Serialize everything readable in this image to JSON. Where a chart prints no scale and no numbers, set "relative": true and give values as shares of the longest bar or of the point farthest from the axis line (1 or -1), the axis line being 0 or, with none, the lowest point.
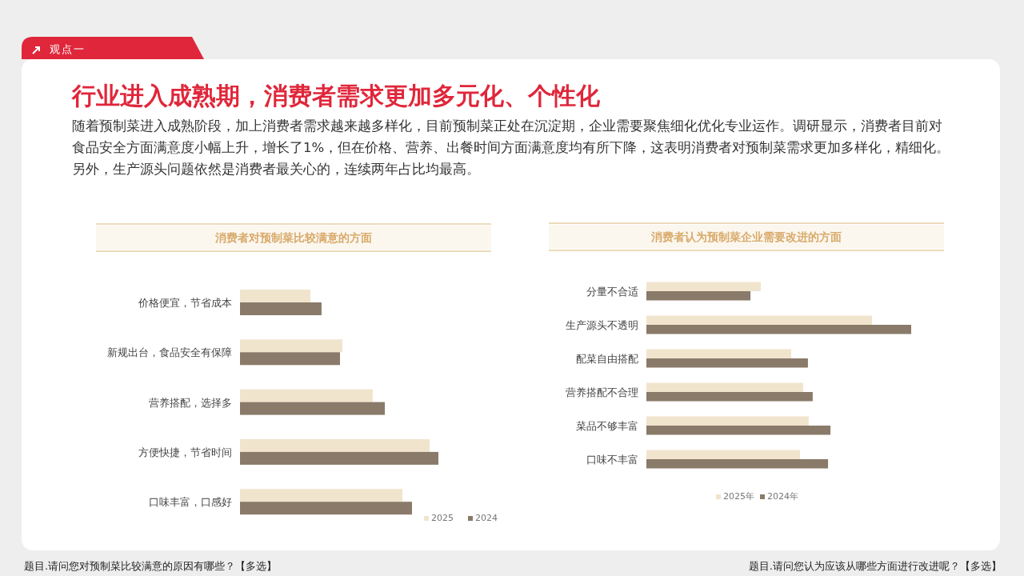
{
  "chart_data": [
    {
      "type": "other",
      "title": "行业进入成熟期，消费者需求更加多元化、个性化",
      "subtitle": "随着预制菜进入成熟阶段，加上消费者需求越来越多样化，目前预制菜正处在沉淀期，企业需要聚焦细化优化专业运作。调研显示，消费者目前对食品安全方面满意度小幅上升，增长了1%，但在价格、营养、出餐时间方面满意度均有所下降，这表明消费者对预制菜需求更加多样化，精细化。另外，生产源头问题依然是消费者最关心的，连续两年占比均最高。",
      "annotations": [
        "观点一"
      ]
    },
    {
      "type": "bar",
      "orientation": "horizontal",
      "relative": true,
      "title": "消费者对预制菜比较满意的方面",
      "categories": [
        "价格便宜，节省成本",
        "新规出台，食品安全有保障",
        "营养搭配，选择多",
        "方便快捷，节省时间",
        "口味丰富，口感好"
      ],
      "series": [
        {
          "name": "2025",
          "color": "#f1e4cd",
          "values": [
            0.355,
            0.516,
            0.669,
            0.956,
            0.819
          ]
        },
        {
          "name": "2024",
          "color": "#8a7a69",
          "values": [
            0.411,
            0.504,
            0.73,
            1,
            0.867
          ]
        }
      ],
      "legend": "bottom right",
      "annotations": [
        "题目.请问您对预制菜比较满意的原因有哪些？【多选】"
      ]
    },
    {
      "type": "bar",
      "orientation": "horizontal",
      "relative": true,
      "title": "消费者认为预制菜企业需要改进的方面",
      "categories": [
        "分量不合适",
        "生产源头不透明",
        "配菜自由搭配",
        "营养搭配不合理",
        "菜品不够丰富",
        "口味不丰富"
      ],
      "series": [
        {
          "name": "2025年",
          "color": "#f1e4cd",
          "values": [
            0.432,
            0.852,
            0.547,
            0.592,
            0.613,
            0.58
          ]
        },
        {
          "name": "2024年",
          "color": "#8a7a69",
          "values": [
            0.393,
            1,
            0.61,
            0.628,
            0.695,
            0.686
          ]
        }
      ],
      "legend": "bottom",
      "annotations": [
        "题目.请问您认为应该从哪些方面进行改进呢？【多选】"
      ]
    }
  ]
}
